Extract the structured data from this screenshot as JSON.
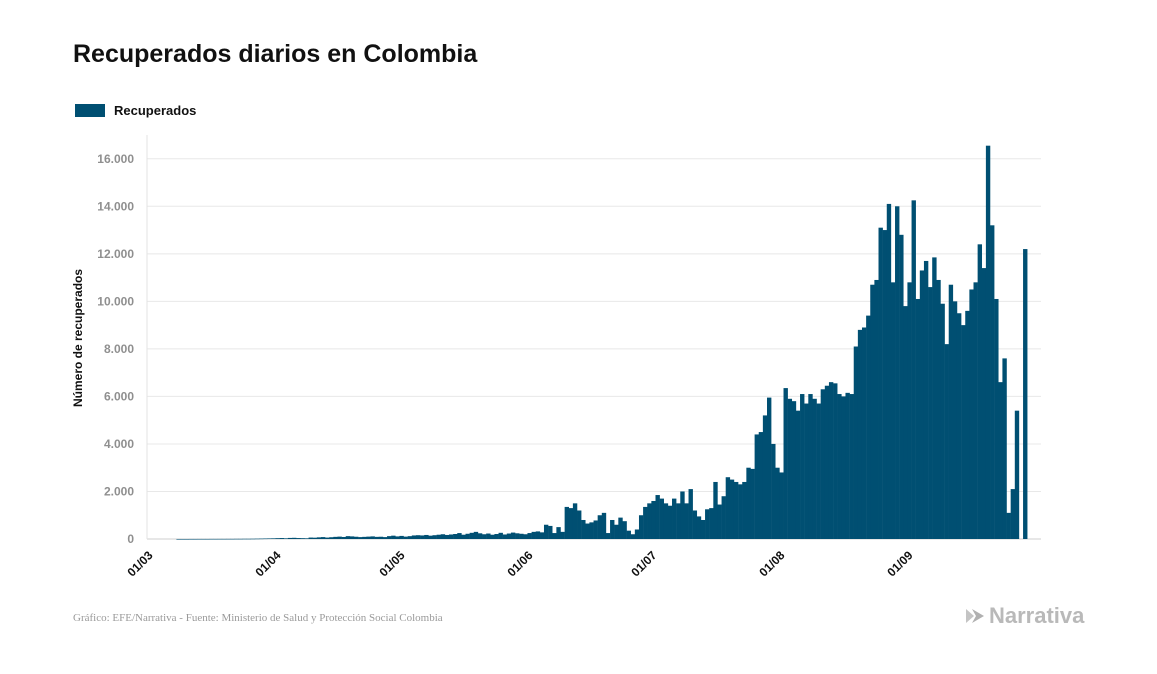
{
  "title": "Recuperados diarios en Colombia",
  "legend": {
    "label": "Recuperados",
    "color": "#004f72"
  },
  "footer": "Gráfico: EFE/Narrativa - Fuente: Ministerio de Salud y Protección Social Colombia",
  "brand": "Narrativa",
  "chart_data": {
    "type": "bar",
    "title": "Recuperados diarios en Colombia",
    "ylabel": "Número de recuperados",
    "xlabel": "",
    "ylim": [
      0,
      17000
    ],
    "grid": true,
    "legend_position": "top-left",
    "y_ticks": [
      0,
      2000,
      4000,
      6000,
      8000,
      10000,
      12000,
      14000,
      16000
    ],
    "y_tick_labels": [
      "0",
      "2.000",
      "4.000",
      "6.000",
      "8.000",
      "10.000",
      "12.000",
      "14.000",
      "16.000"
    ],
    "x_tick_labels": [
      "01/03",
      "01/04",
      "01/05",
      "01/06",
      "01/07",
      "01/08",
      "01/09"
    ],
    "x_tick_dates": [
      "2020-03-01",
      "2020-04-01",
      "2020-05-01",
      "2020-06-01",
      "2020-07-01",
      "2020-08-01",
      "2020-09-01"
    ],
    "series": [
      {
        "name": "Recuperados",
        "color": "#004f72",
        "start_date": "2020-03-01",
        "values": [
          0,
          0,
          0,
          0,
          0,
          0,
          0,
          1,
          1,
          1,
          2,
          2,
          3,
          3,
          3,
          4,
          4,
          5,
          5,
          6,
          6,
          8,
          8,
          10,
          10,
          12,
          15,
          18,
          22,
          25,
          28,
          35,
          40,
          30,
          45,
          50,
          40,
          35,
          30,
          60,
          55,
          70,
          80,
          60,
          75,
          90,
          100,
          85,
          120,
          110,
          95,
          80,
          90,
          100,
          110,
          90,
          95,
          80,
          120,
          140,
          110,
          130,
          100,
          120,
          150,
          160,
          150,
          170,
          140,
          160,
          180,
          200,
          170,
          190,
          210,
          250,
          180,
          220,
          260,
          300,
          240,
          200,
          230,
          180,
          210,
          260,
          190,
          230,
          270,
          240,
          220,
          200,
          250,
          300,
          320,
          280,
          600,
          550,
          250,
          500,
          300,
          1350,
          1300,
          1500,
          1200,
          800,
          650,
          700,
          780,
          1000,
          1100,
          250,
          800,
          600,
          900,
          750,
          350,
          200,
          400,
          1000,
          1350,
          1500,
          1600,
          1850,
          1700,
          1500,
          1400,
          1700,
          1500,
          2000,
          1500,
          2100,
          1200,
          950,
          800,
          1250,
          1300,
          2400,
          1450,
          1800,
          2600,
          2500,
          2400,
          2300,
          2400,
          3000,
          2950,
          4400,
          4500,
          5200,
          5950,
          4000,
          3000,
          2800,
          6350,
          5900,
          5800,
          5400,
          6100,
          5700,
          6100,
          5900,
          5700,
          6300,
          6450,
          6600,
          6550,
          6100,
          6000,
          6150,
          6100,
          8100,
          8800,
          8900,
          9400,
          10700,
          10900,
          13100,
          13000,
          14100,
          10800,
          14000,
          12800,
          9800,
          10800,
          14250,
          10100,
          11300,
          11700,
          10600,
          11850,
          10900,
          9900,
          8200,
          10700,
          10000,
          9500,
          9000,
          9600,
          10500,
          10800,
          12400,
          11400,
          16550,
          13200,
          10100,
          6600,
          7600,
          1100,
          2100,
          5400,
          0,
          12200
        ]
      }
    ]
  }
}
